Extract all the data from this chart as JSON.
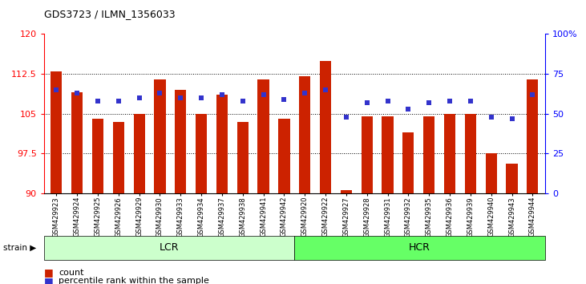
{
  "title": "GDS3723 / ILMN_1356033",
  "samples": [
    "GSM429923",
    "GSM429924",
    "GSM429925",
    "GSM429926",
    "GSM429929",
    "GSM429930",
    "GSM429933",
    "GSM429934",
    "GSM429937",
    "GSM429938",
    "GSM429941",
    "GSM429942",
    "GSM429920",
    "GSM429922",
    "GSM429927",
    "GSM429928",
    "GSM429931",
    "GSM429932",
    "GSM429935",
    "GSM429936",
    "GSM429939",
    "GSM429940",
    "GSM429943",
    "GSM429944"
  ],
  "counts": [
    113.0,
    109.0,
    104.0,
    103.5,
    105.0,
    111.5,
    109.5,
    105.0,
    108.5,
    103.5,
    111.5,
    104.0,
    112.0,
    115.0,
    90.5,
    104.5,
    104.5,
    101.5,
    104.5,
    105.0,
    105.0,
    97.5,
    95.5,
    111.5
  ],
  "percentile_ranks": [
    65,
    63,
    58,
    58,
    60,
    63,
    60,
    60,
    62,
    58,
    62,
    59,
    63,
    65,
    48,
    57,
    58,
    53,
    57,
    58,
    58,
    48,
    47,
    62
  ],
  "lcr_color": "#ccffcc",
  "hcr_color": "#66ff66",
  "bar_color": "#cc2200",
  "dot_color": "#3333cc",
  "ylim_left": [
    90,
    120
  ],
  "ylim_right": [
    0,
    100
  ],
  "yticks_left": [
    90,
    97.5,
    105,
    112.5,
    120
  ],
  "ytick_labels_left": [
    "90",
    "97.5",
    "105",
    "112.5",
    "120"
  ],
  "yticks_right": [
    0,
    25,
    50,
    75,
    100
  ],
  "ytick_labels_right": [
    "0",
    "25",
    "50",
    "75",
    "100%"
  ],
  "grid_values": [
    97.5,
    105,
    112.5
  ],
  "lcr_count": 12,
  "hcr_count": 12
}
